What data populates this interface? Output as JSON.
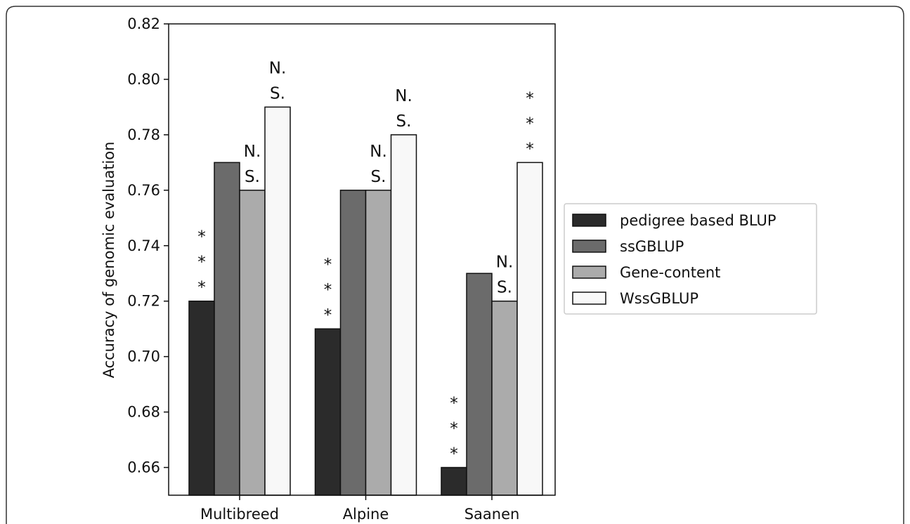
{
  "chart_data": {
    "type": "bar",
    "categories": [
      "Multibreed",
      "Alpine",
      "Saanen"
    ],
    "y_label": "Accuracy of genomic evaluation",
    "ylim": [
      0.65,
      0.82
    ],
    "yticks": [
      0.66,
      0.68,
      {
        "value": 0.7,
        "label": "0.70"
      },
      0.72,
      0.74,
      0.76,
      0.78,
      {
        "value": 0.8,
        "label": "0.80"
      },
      0.82
    ],
    "series": [
      {
        "name": "pedigree based BLUP",
        "color": "#2b2b2b",
        "values": [
          0.72,
          0.71,
          0.66
        ],
        "annotations": [
          [
            "*",
            "*",
            "*"
          ],
          [
            "*",
            "*",
            "*"
          ],
          [
            "*",
            "*",
            "*"
          ]
        ]
      },
      {
        "name": "ssGBLUP",
        "color": "#6b6b6b",
        "values": [
          0.77,
          0.76,
          0.73
        ]
      },
      {
        "name": "Gene-content",
        "color": "#ababab",
        "values": [
          0.76,
          0.76,
          0.72
        ],
        "annotations": [
          [
            "N.",
            "S."
          ],
          [
            "N.",
            "S."
          ],
          [
            "N.",
            "S."
          ]
        ]
      },
      {
        "name": "WssGBLUP",
        "color": "#f8f8f8",
        "values": [
          0.79,
          0.78,
          0.77
        ],
        "annotations": [
          [
            "N.",
            "S."
          ],
          [
            "N.",
            "S."
          ],
          [
            "*",
            "*",
            "*"
          ]
        ]
      }
    ],
    "legend": "right"
  }
}
